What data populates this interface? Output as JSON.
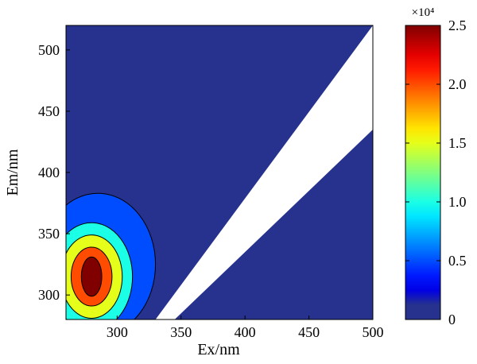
{
  "chart_data": {
    "type": "heatmap",
    "subtype": "filled-contour (excitation-emission matrix)",
    "xlabel": "Ex/nm",
    "ylabel": "Em/nm",
    "xlim": [
      260,
      500
    ],
    "ylim": [
      280,
      520
    ],
    "x_ticks": [
      300,
      350,
      400,
      450,
      500
    ],
    "x_tick_labels": [
      "300",
      "350",
      "400",
      "450",
      "500"
    ],
    "y_ticks": [
      300,
      350,
      400,
      450,
      500
    ],
    "y_tick_labels": [
      "300",
      "350",
      "400",
      "450",
      "500"
    ],
    "grid": false,
    "masked_band": {
      "description": "Rayleigh scatter region removed (white)",
      "color": "#ffffff",
      "upper_edge": [
        [
          330,
          280
        ],
        [
          500,
          520
        ]
      ],
      "lower_edge": [
        [
          345,
          280
        ],
        [
          500,
          435
        ]
      ]
    },
    "peaks": [
      {
        "ex": 280,
        "em": 315,
        "intensity": 25000
      }
    ],
    "contour_levels": [
      2500,
      7500,
      12500,
      17500,
      22500
    ],
    "colorbar": {
      "min": 0,
      "max": 25000,
      "scale_label": "×10⁴",
      "tick_values": [
        0,
        5000,
        10000,
        15000,
        20000,
        25000
      ],
      "tick_labels": [
        "0",
        "0.5",
        "1.0",
        "1.5",
        "2.0",
        "2.5"
      ],
      "colormap": "jet",
      "background_color": "#26328e"
    }
  }
}
